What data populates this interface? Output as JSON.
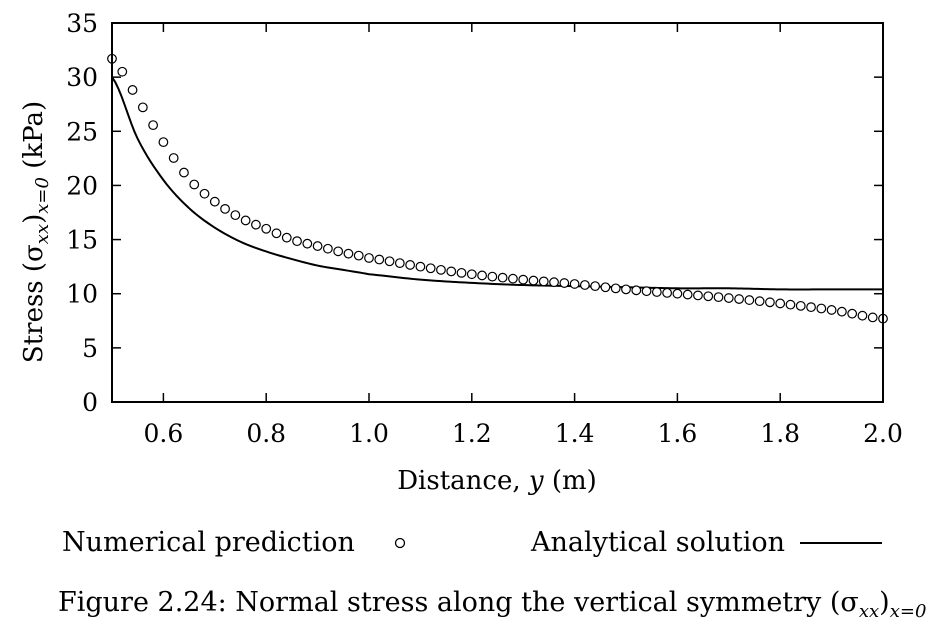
{
  "figure": {
    "caption": "Figure 2.24: Normal stress along the vertical symmetry (σxx)x=0"
  },
  "chart_data": {
    "type": "scatter",
    "title": "",
    "xlabel": "Distance, y (m)",
    "ylabel": "Stress (σxx)x=0 (kPa)",
    "xlim": [
      0.5,
      2.0
    ],
    "ylim": [
      0,
      35
    ],
    "xticks": [
      0.6,
      0.8,
      1.0,
      1.2,
      1.4,
      1.6,
      1.8,
      2.0
    ],
    "xtick_labels": [
      "0.6",
      "0.8",
      "1.0",
      "1.2",
      "1.4",
      "1.6",
      "1.8",
      "2.0"
    ],
    "yticks": [
      0,
      5,
      10,
      15,
      20,
      25,
      30,
      35
    ],
    "ytick_labels": [
      "0",
      "5",
      "10",
      "15",
      "20",
      "25",
      "30",
      "35"
    ],
    "grid": false,
    "legend_position": "bottom",
    "series": [
      {
        "name": "Numerical prediction",
        "kind": "scatter",
        "marker": "open-circle",
        "x": [
          0.5,
          0.55,
          0.6,
          0.65,
          0.7,
          0.75,
          0.8,
          0.85,
          0.9,
          0.95,
          1.0,
          1.1,
          1.2,
          1.3,
          1.4,
          1.5,
          1.6,
          1.7,
          1.8,
          1.9,
          2.0
        ],
        "y": [
          31.7,
          28.0,
          24.0,
          20.6,
          18.5,
          17.0,
          16.0,
          15.0,
          14.4,
          13.8,
          13.3,
          12.5,
          11.8,
          11.3,
          10.9,
          10.4,
          10.0,
          9.6,
          9.1,
          8.5,
          7.7
        ]
      },
      {
        "name": "Analytical solution",
        "kind": "line",
        "x": [
          0.5,
          0.55,
          0.6,
          0.65,
          0.7,
          0.75,
          0.8,
          0.85,
          0.9,
          0.95,
          1.0,
          1.1,
          1.2,
          1.3,
          1.4,
          1.5,
          1.6,
          1.7,
          1.8,
          1.9,
          2.0
        ],
        "y": [
          30.0,
          24.3,
          20.5,
          17.9,
          16.1,
          14.8,
          13.9,
          13.2,
          12.6,
          12.2,
          11.8,
          11.3,
          11.0,
          10.8,
          10.7,
          10.6,
          10.5,
          10.5,
          10.4,
          10.4,
          10.4
        ]
      }
    ]
  }
}
